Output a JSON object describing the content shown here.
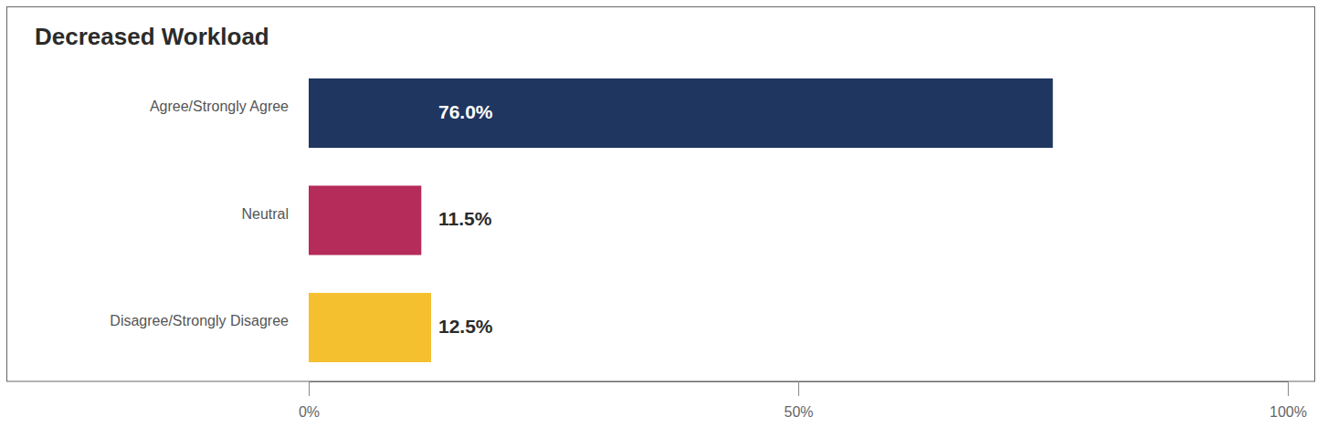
{
  "chart_data": {
    "type": "bar",
    "orientation": "horizontal",
    "title": "Decreased Workload",
    "categories": [
      "Agree/Strongly Agree",
      "Neutral",
      "Disagree/Strongly Disagree"
    ],
    "values": [
      76.0,
      11.5,
      12.5
    ],
    "value_labels": [
      "76.0%",
      "11.5%",
      "12.5%"
    ],
    "colors": [
      "#1f3660",
      "#b52b5a",
      "#f5c030"
    ],
    "xlim": [
      0,
      100
    ],
    "xticks": [
      {
        "value": 0,
        "label": "0%"
      },
      {
        "value": 50,
        "label": "50%"
      },
      {
        "value": 100,
        "label": "100%"
      }
    ],
    "data_labels": true,
    "grid": false
  }
}
